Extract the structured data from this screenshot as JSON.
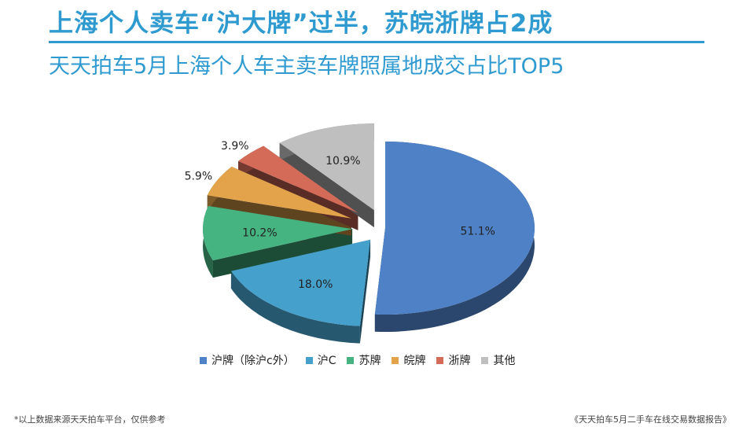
{
  "header": {
    "title": "上海个人卖车“沪大牌”过半，苏皖浙牌占2成",
    "subtitle": "天天拍车5月上海个人车主卖车牌照属地成交占比TOP5"
  },
  "footer": {
    "note": "*以上数据来源天天拍车平台，仅供参考",
    "source": "《天天拍车5月二手车在线交易数据报告》"
  },
  "chart_data": {
    "type": "pie",
    "style": "3d-exploded",
    "unit": "%",
    "categories": [
      "沪牌（除沪c外）",
      "沪C",
      "苏牌",
      "皖牌",
      "浙牌",
      "其他"
    ],
    "values": [
      51.1,
      18.0,
      10.2,
      5.9,
      3.9,
      10.9
    ],
    "data_labels": [
      "51.1%",
      "18.0%",
      "10.2%",
      "5.9%",
      "3.9%",
      "10.9%"
    ],
    "colors": [
      "#4f81c7",
      "#45a0cc",
      "#46b481",
      "#e2a34b",
      "#d46a58",
      "#bfbfbf"
    ],
    "legend_position": "bottom"
  }
}
